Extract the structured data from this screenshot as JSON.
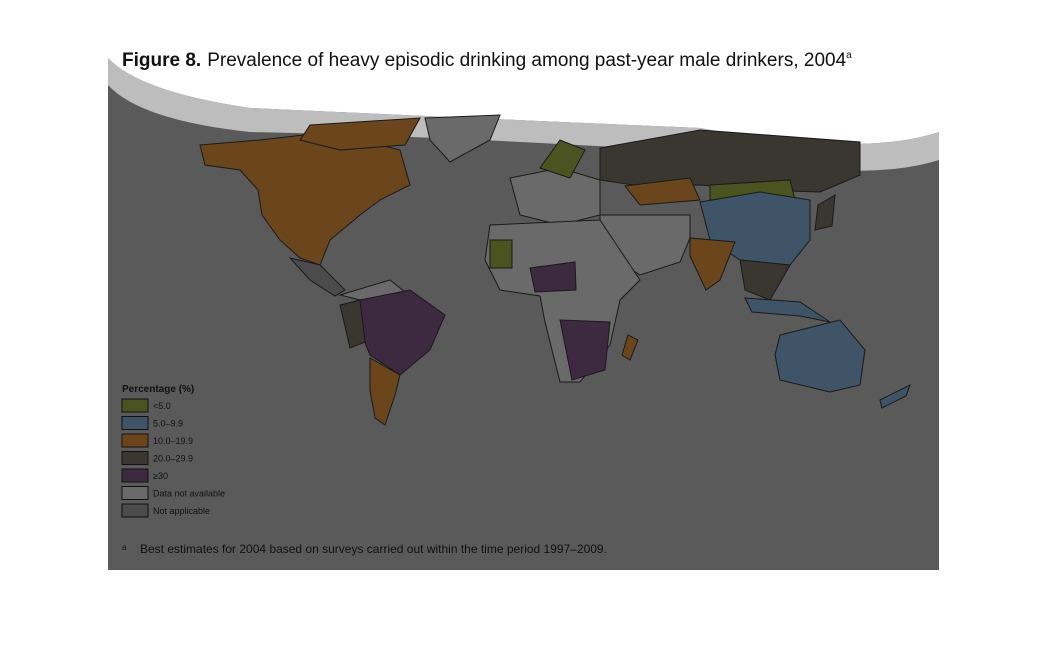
{
  "title": {
    "label": "Figure 8.",
    "text": "Prevalence of heavy episodic drinking among past-year male drinkers, 2004",
    "note_mark": "a"
  },
  "legend": {
    "title": "Percentage (%)",
    "items": [
      {
        "label": "<5.0",
        "color": "#4b5320"
      },
      {
        "label": "5.0–9.9",
        "color": "#3f5466"
      },
      {
        "label": "10.0–19.9",
        "color": "#6b461c"
      },
      {
        "label": "20.0–29.9",
        "color": "#3a3630"
      },
      {
        "label": "≥30",
        "color": "#3e2a40"
      },
      {
        "label": "Data not available",
        "color": "#6a6a6a"
      },
      {
        "label": "Not applicable",
        "color": "#4c4c4c"
      }
    ]
  },
  "footnote": {
    "mark": "a",
    "text": "Best estimates for 2004 based on surveys carried out within the time period 1997–2009."
  }
}
